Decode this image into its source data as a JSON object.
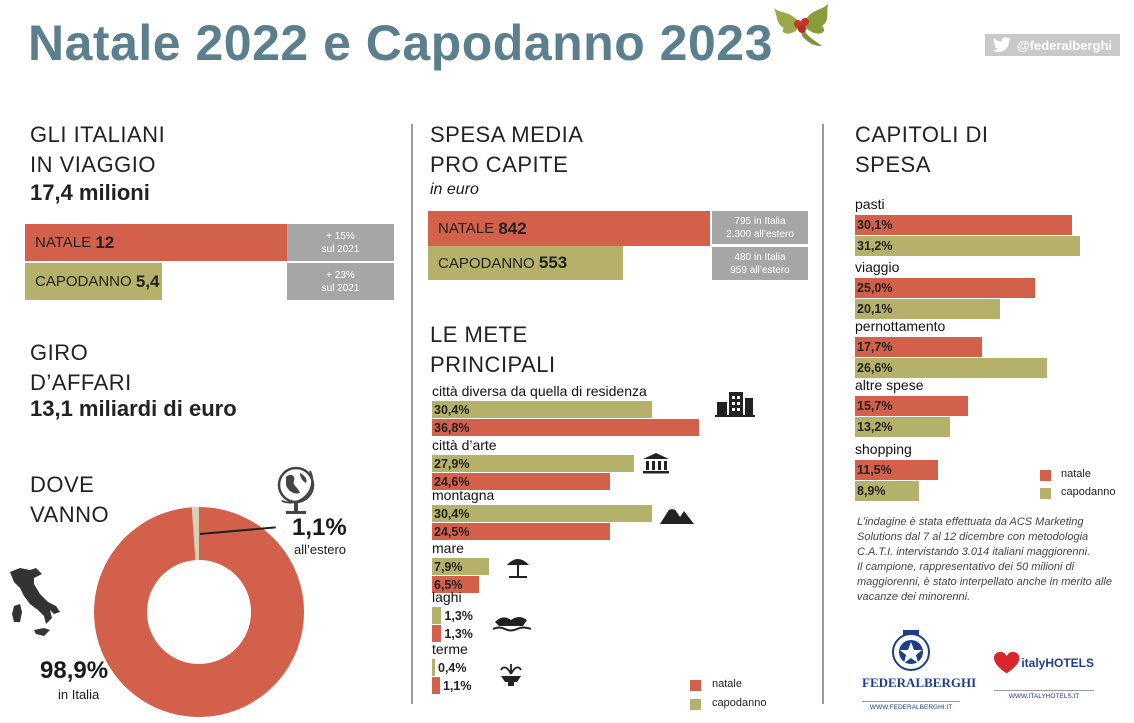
{
  "header": {
    "title": "Natale 2022 e Capodanno 2023",
    "twitter_handle": "@federalberghi"
  },
  "travelers": {
    "heading_line1": "GLI ITALIANI",
    "heading_line2": "IN VIAGGIO",
    "total": "17,4 milioni",
    "natale_label": "NATALE",
    "natale_value": "12",
    "natale_change_line1": "+ 15%",
    "natale_change_line2": "sul 2021",
    "capodanno_label": "CAPODANNO",
    "capodanno_value": "5,4",
    "capodanno_change_line1": "+ 23%",
    "capodanno_change_line2": "sul 2021"
  },
  "turnover": {
    "heading_line1": "GIRO",
    "heading_line2": "D’AFFARI",
    "value": "13,1 miliardi di euro"
  },
  "destinations": {
    "heading_line1": "DOVE",
    "heading_line2": "VANNO",
    "abroad_pct": "1,1%",
    "abroad_label": "all’estero",
    "italy_pct": "98,9%",
    "italy_label": "in Italia"
  },
  "spending": {
    "heading_line1": "SPESA MEDIA",
    "heading_line2": "PRO CAPITE",
    "subtitle": "in euro",
    "natale_label": "NATALE",
    "natale_value": "842",
    "natale_detail_line1": "795 in Italia",
    "natale_detail_line2": "2.300 all’estero",
    "capodanno_label": "CAPODANNO",
    "capodanno_value": "553",
    "capodanno_detail_line1": "480 in Italia",
    "capodanno_detail_line2": "959 all’estero"
  },
  "mete": {
    "heading_line1": "LE METE",
    "heading_line2": "PRINCIPALI",
    "legend_natale": "natale",
    "legend_capodanno": "capodanno"
  },
  "capitoli": {
    "heading_line1": "CAPITOLI DI",
    "heading_line2": "SPESA",
    "legend_natale": "natale",
    "legend_capodanno": "capodanno"
  },
  "notes": {
    "para1": "L’indagine è stata effettuata da ACS Marketing Solutions dal 7 al 12 dicembre con metodologia C.A.T.I. intervistando 3.014 italiani maggiorenni.",
    "para2": "Il campione, rappresentativo dei 50 milioni di maggiorenni, è stato interpellato anche in merito alle vacanze dei minorenni."
  },
  "logos": {
    "federalberghi_name": "FEDERALBERGHI",
    "federalberghi_url": "WWW.FEDERALBERGHI.IT",
    "italyhotels_name": "italyHOTELS",
    "italyhotels_url": "WWW.ITALYHOTELS.IT"
  },
  "colors": {
    "natale": "#d2604a",
    "capodanno": "#b5b06a",
    "title": "#5b7f8c"
  },
  "chart_data": [
    {
      "type": "bar",
      "title": "GLI ITALIANI IN VIAGGIO",
      "categories": [
        "NATALE",
        "CAPODANNO"
      ],
      "values": [
        12,
        5.4
      ],
      "unit": "milioni"
    },
    {
      "type": "bar",
      "title": "SPESA MEDIA PRO CAPITE",
      "categories": [
        "NATALE",
        "CAPODANNO"
      ],
      "values": [
        842,
        553
      ],
      "unit": "euro"
    },
    {
      "type": "pie",
      "title": "DOVE VANNO",
      "categories": [
        "in Italia",
        "all’estero"
      ],
      "values": [
        98.9,
        1.1
      ]
    },
    {
      "type": "bar",
      "title": "LE METE PRINCIPALI",
      "categories": [
        "città diversa da quella di residenza",
        "città d’arte",
        "montagna",
        "mare",
        "laghi",
        "terme"
      ],
      "series": [
        {
          "name": "capodanno",
          "values": [
            30.4,
            27.9,
            30.4,
            7.9,
            1.3,
            0.4
          ],
          "labels": [
            "30,4%",
            "27,9%",
            "30,4%",
            "7,9%",
            "1,3%",
            "0,4%"
          ]
        },
        {
          "name": "natale",
          "values": [
            36.8,
            24.6,
            24.5,
            6.5,
            1.3,
            1.1
          ],
          "labels": [
            "36,8%",
            "24,6%",
            "24,5%",
            "6,5%",
            "1,3%",
            "1,1%"
          ]
        }
      ],
      "icons": [
        "building-icon",
        "temple-icon",
        "mountain-icon",
        "umbrella-icon",
        "boat-icon",
        "fountain-icon"
      ]
    },
    {
      "type": "bar",
      "title": "CAPITOLI DI SPESA",
      "categories": [
        "pasti",
        "viaggio",
        "pernottamento",
        "altre spese",
        "shopping"
      ],
      "series": [
        {
          "name": "natale",
          "values": [
            30.1,
            25.0,
            17.7,
            15.7,
            11.5
          ],
          "labels": [
            "30,1%",
            "25,0%",
            "17,7%",
            "15,7%",
            "11,5%"
          ]
        },
        {
          "name": "capodanno",
          "values": [
            31.2,
            20.1,
            26.6,
            13.2,
            8.9
          ],
          "labels": [
            "31,2%",
            "20,1%",
            "26,6%",
            "13,2%",
            "8,9%"
          ]
        }
      ]
    }
  ]
}
